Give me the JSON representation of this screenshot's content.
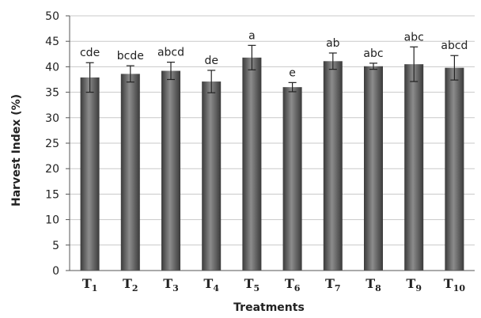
{
  "chart_data": {
    "type": "bar",
    "xlabel": "Treatments",
    "ylabel": "Harvest Index (%)",
    "ylim": [
      0,
      50
    ],
    "yticks": [
      0,
      5,
      10,
      15,
      20,
      25,
      30,
      35,
      40,
      45,
      50
    ],
    "grid": true,
    "categories": [
      {
        "base": "T",
        "sub": "1"
      },
      {
        "base": "T",
        "sub": "2"
      },
      {
        "base": "T",
        "sub": "3"
      },
      {
        "base": "T",
        "sub": "4"
      },
      {
        "base": "T",
        "sub": "5"
      },
      {
        "base": "T",
        "sub": "6"
      },
      {
        "base": "T",
        "sub": "7"
      },
      {
        "base": "T",
        "sub": "8"
      },
      {
        "base": "T",
        "sub": "9"
      },
      {
        "base": "T",
        "sub": "10"
      }
    ],
    "values": [
      37.9,
      38.6,
      39.2,
      37.1,
      41.8,
      36.0,
      41.1,
      40.1,
      40.5,
      39.8
    ],
    "errors": [
      2.9,
      1.6,
      1.7,
      2.2,
      2.4,
      0.9,
      1.6,
      0.6,
      3.4,
      2.4
    ],
    "significance_labels": [
      "cde",
      "bcde",
      "abcd",
      "de",
      "a",
      "e",
      "ab",
      "abc",
      "abc",
      "abcd"
    ],
    "colors": {
      "bar_dark": "#3a3a3a",
      "bar_light": "#8c8c8c",
      "grid": "#c8c8c8",
      "axis": "#555555"
    }
  }
}
